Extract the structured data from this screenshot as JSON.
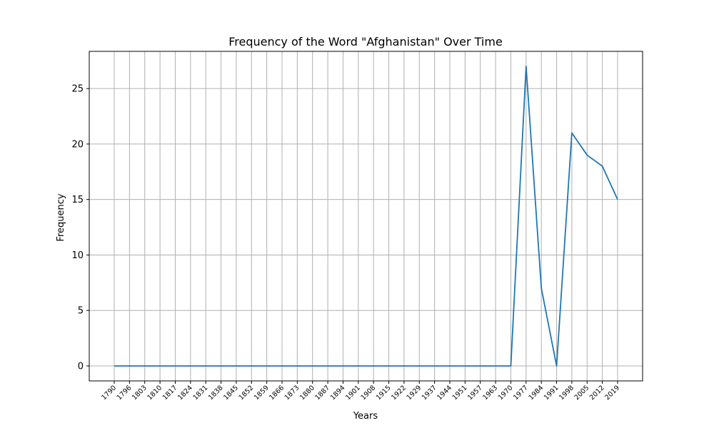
{
  "chart_data": {
    "type": "line",
    "title": "Frequency of the Word \"Afghanistan\" Over Time",
    "xlabel": "Years",
    "ylabel": "Frequency",
    "grid": true,
    "ylim": [
      -1.35,
      28.35
    ],
    "yticks": [
      0,
      5,
      10,
      15,
      20,
      25
    ],
    "categories": [
      "1790",
      "1796",
      "1803",
      "1810",
      "1817",
      "1824",
      "1831",
      "1838",
      "1845",
      "1852",
      "1859",
      "1866",
      "1873",
      "1880",
      "1887",
      "1894",
      "1901",
      "1908",
      "1915",
      "1922",
      "1929",
      "1937",
      "1944",
      "1951",
      "1957",
      "1963",
      "1970",
      "1977",
      "1984",
      "1991",
      "1998",
      "2005",
      "2012",
      "2019"
    ],
    "series": [
      {
        "color": "#1f77b4",
        "values": [
          0,
          0,
          0,
          0,
          0,
          0,
          0,
          0,
          0,
          0,
          0,
          0,
          0,
          0,
          0,
          0,
          0,
          0,
          0,
          0,
          0,
          0,
          0,
          0,
          0,
          0,
          0,
          27,
          7,
          0,
          21,
          19,
          18,
          15
        ]
      }
    ]
  }
}
